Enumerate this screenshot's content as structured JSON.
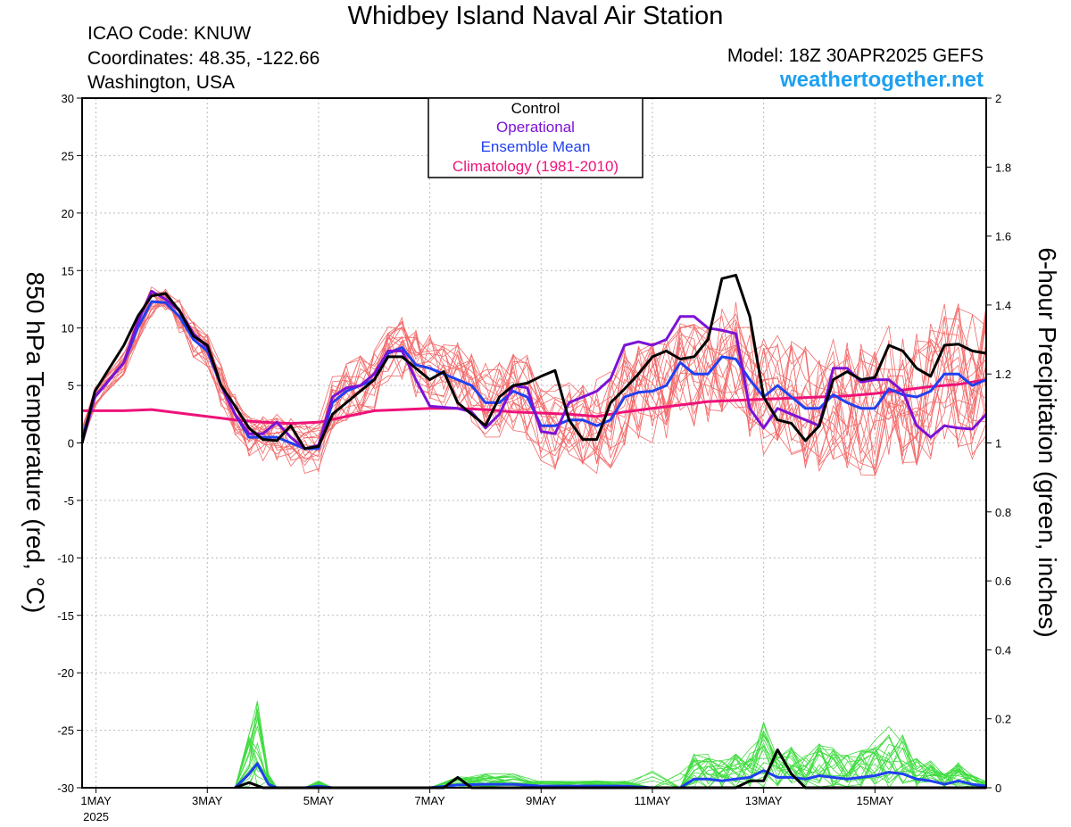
{
  "header": {
    "title": "Whidbey Island Naval Air Station",
    "icao": "ICAO Code: KNUW",
    "coordinates": "Coordinates: 48.35, -122.66",
    "region": "Washington, USA",
    "model": "Model: 18Z 30APR2025 GEFS",
    "site": "weathertogether.net"
  },
  "colors": {
    "control": "#000000",
    "operational": "#7b12d6",
    "ensemble_mean": "#2040f0",
    "climatology": "#ee1279",
    "ensemble_members_temp": "#f26a6a",
    "ensemble_members_precip": "#3fdc3f",
    "site": "#1ea0f0"
  },
  "chart_data": {
    "type": "line",
    "xlabel": "",
    "ylabel_left": "850 hPa Temperature (red, °C)",
    "ylabel_right": "6-hour Precipitation (green, inches)",
    "x_unit": "days since 1MAY 2025 00Z",
    "xlim": [
      -0.25,
      16.0
    ],
    "ylim_left": [
      -30,
      30
    ],
    "ylim_right": [
      0,
      2
    ],
    "left_ticks": [
      "30",
      "25",
      "20",
      "15",
      "10",
      "5",
      "0",
      "-5",
      "-10",
      "-15",
      "-20",
      "-25",
      "-30"
    ],
    "right_ticks": [
      "2",
      "1.8",
      "1.6",
      "1.4",
      "1.2",
      "1",
      "0.8",
      "0.6",
      "0.4",
      "0.2",
      "0"
    ],
    "x_ticks": [
      {
        "day": 0,
        "label": "1MAY",
        "sub": "2025"
      },
      {
        "day": 2,
        "label": "3MAY",
        "sub": ""
      },
      {
        "day": 4,
        "label": "5MAY",
        "sub": ""
      },
      {
        "day": 6,
        "label": "7MAY",
        "sub": ""
      },
      {
        "day": 8,
        "label": "9MAY",
        "sub": ""
      },
      {
        "day": 10,
        "label": "11MAY",
        "sub": ""
      },
      {
        "day": 12,
        "label": "13MAY",
        "sub": ""
      },
      {
        "day": 14,
        "label": "15MAY",
        "sub": ""
      }
    ],
    "grid": true,
    "legend_position": "top-center",
    "legend": [
      {
        "label": "Control",
        "series": "control"
      },
      {
        "label": "Operational",
        "series": "operational"
      },
      {
        "label": "Ensemble Mean",
        "series": "ensemble_mean"
      },
      {
        "label": "Climatology (1981-2010)",
        "series": "climatology"
      }
    ],
    "series": [
      {
        "name": "Control",
        "axis": "left",
        "color": "#000000",
        "width": 3,
        "points": [
          [
            -0.25,
            0
          ],
          [
            -0.02,
            4.5
          ],
          [
            0.5,
            8.5
          ],
          [
            0.75,
            11
          ],
          [
            1,
            12.8
          ],
          [
            1.25,
            13
          ],
          [
            1.5,
            11.5
          ],
          [
            1.75,
            9.3
          ],
          [
            2,
            8.5
          ],
          [
            2.25,
            5
          ],
          [
            2.5,
            3.2
          ],
          [
            2.75,
            1.3
          ],
          [
            3,
            0.3
          ],
          [
            3.25,
            0.2
          ],
          [
            3.5,
            1.5
          ],
          [
            3.75,
            -0.5
          ],
          [
            4,
            -0.3
          ],
          [
            4.25,
            2.5
          ],
          [
            4.5,
            3.5
          ],
          [
            4.75,
            4.5
          ],
          [
            5,
            5.5
          ],
          [
            5.25,
            7.5
          ],
          [
            5.5,
            7.5
          ],
          [
            5.75,
            6.5
          ],
          [
            6,
            5.5
          ],
          [
            6.25,
            6.2
          ],
          [
            6.5,
            3.5
          ],
          [
            6.75,
            2.5
          ],
          [
            7,
            1.5
          ],
          [
            7.25,
            4
          ],
          [
            7.5,
            5
          ],
          [
            7.75,
            5.2
          ],
          [
            8,
            5.8
          ],
          [
            8.25,
            6.3
          ],
          [
            8.5,
            2
          ],
          [
            8.75,
            0.3
          ],
          [
            9,
            0.3
          ],
          [
            9.25,
            3.5
          ],
          [
            9.5,
            4.7
          ],
          [
            9.75,
            6
          ],
          [
            10,
            7.5
          ],
          [
            10.25,
            8
          ],
          [
            10.5,
            7.3
          ],
          [
            10.75,
            7.5
          ],
          [
            11,
            9
          ],
          [
            11.25,
            14.3
          ],
          [
            11.5,
            14.6
          ],
          [
            11.75,
            11
          ],
          [
            12,
            4
          ],
          [
            12.25,
            2
          ],
          [
            12.5,
            1.7
          ],
          [
            12.75,
            0.2
          ],
          [
            13,
            1.5
          ],
          [
            13.25,
            5.5
          ],
          [
            13.5,
            6.2
          ],
          [
            13.75,
            5.5
          ],
          [
            14,
            5.7
          ],
          [
            14.25,
            8.5
          ],
          [
            14.5,
            8
          ],
          [
            14.75,
            6.5
          ],
          [
            15,
            5.8
          ],
          [
            15.25,
            8.5
          ],
          [
            15.5,
            8.6
          ],
          [
            15.75,
            8
          ],
          [
            16,
            7.8
          ]
        ]
      },
      {
        "name": "Operational",
        "axis": "left",
        "color": "#7b12d6",
        "width": 3,
        "points": [
          [
            -0.25,
            0
          ],
          [
            -0.02,
            4
          ],
          [
            0.5,
            7
          ],
          [
            0.75,
            10.5
          ],
          [
            1,
            13.2
          ],
          [
            1.25,
            12.5
          ],
          [
            1.5,
            11.5
          ],
          [
            1.75,
            9.5
          ],
          [
            2,
            8.3
          ],
          [
            2.25,
            5
          ],
          [
            2.5,
            2.5
          ],
          [
            2.75,
            0.8
          ],
          [
            3,
            0.8
          ],
          [
            3.25,
            1.8
          ],
          [
            3.5,
            0.5
          ],
          [
            3.75,
            -0.5
          ],
          [
            4,
            -0.2
          ],
          [
            4.25,
            4
          ],
          [
            4.5,
            4.8
          ],
          [
            4.75,
            5
          ],
          [
            5,
            6
          ],
          [
            5.25,
            8
          ],
          [
            5.5,
            8
          ],
          [
            5.75,
            5.5
          ],
          [
            6,
            3.2
          ],
          [
            6.25,
            3.1
          ],
          [
            6.5,
            3
          ],
          [
            6.75,
            2.7
          ],
          [
            7,
            1.3
          ],
          [
            7.25,
            2.5
          ],
          [
            7.5,
            5
          ],
          [
            7.75,
            4.8
          ],
          [
            8,
            1
          ],
          [
            8.25,
            0.8
          ],
          [
            8.5,
            3.5
          ],
          [
            8.75,
            4
          ],
          [
            9,
            4.5
          ],
          [
            9.25,
            5.6
          ],
          [
            9.5,
            8.5
          ],
          [
            9.75,
            8.8
          ],
          [
            10,
            8.5
          ],
          [
            10.25,
            9
          ],
          [
            10.5,
            11
          ],
          [
            10.75,
            11
          ],
          [
            11,
            10
          ],
          [
            11.25,
            9.8
          ],
          [
            11.5,
            9.5
          ],
          [
            11.75,
            3
          ],
          [
            12,
            1.3
          ],
          [
            12.25,
            3
          ],
          [
            12.5,
            2.5
          ],
          [
            12.75,
            2
          ],
          [
            13,
            1.5
          ],
          [
            13.25,
            6.5
          ],
          [
            13.5,
            6.5
          ],
          [
            13.75,
            5.3
          ],
          [
            14,
            5.5
          ],
          [
            14.25,
            5.5
          ],
          [
            14.5,
            4.5
          ],
          [
            14.75,
            1.5
          ],
          [
            15,
            0.5
          ],
          [
            15.25,
            1.5
          ],
          [
            15.5,
            1.3
          ],
          [
            15.75,
            1.2
          ],
          [
            16,
            2.5
          ]
        ]
      },
      {
        "name": "Ensemble Mean",
        "axis": "left",
        "color": "#2040f0",
        "width": 3,
        "points": [
          [
            -0.25,
            0.5
          ],
          [
            -0.02,
            4
          ],
          [
            0.5,
            7
          ],
          [
            0.75,
            10
          ],
          [
            1,
            12.3
          ],
          [
            1.25,
            12.2
          ],
          [
            1.5,
            11
          ],
          [
            1.75,
            9
          ],
          [
            2,
            8
          ],
          [
            2.25,
            5
          ],
          [
            2.5,
            2.5
          ],
          [
            2.75,
            0.5
          ],
          [
            3,
            0.5
          ],
          [
            3.25,
            0.5
          ],
          [
            3.5,
            0
          ],
          [
            3.75,
            -0.5
          ],
          [
            4,
            -0.5
          ],
          [
            4.25,
            3.5
          ],
          [
            4.5,
            4.5
          ],
          [
            4.75,
            5
          ],
          [
            5,
            5.5
          ],
          [
            5.25,
            7.8
          ],
          [
            5.5,
            8.3
          ],
          [
            5.75,
            6.8
          ],
          [
            6,
            6.5
          ],
          [
            6.25,
            6
          ],
          [
            6.5,
            5.5
          ],
          [
            6.75,
            5
          ],
          [
            7,
            3.5
          ],
          [
            7.25,
            3.5
          ],
          [
            7.5,
            4.5
          ],
          [
            7.75,
            4
          ],
          [
            8,
            1.5
          ],
          [
            8.25,
            1.5
          ],
          [
            8.5,
            2
          ],
          [
            8.75,
            2
          ],
          [
            9,
            1.5
          ],
          [
            9.25,
            2
          ],
          [
            9.5,
            4
          ],
          [
            9.75,
            4.4
          ],
          [
            10,
            4.5
          ],
          [
            10.25,
            5
          ],
          [
            10.5,
            7
          ],
          [
            10.75,
            6
          ],
          [
            11,
            6
          ],
          [
            11.25,
            7.5
          ],
          [
            11.5,
            7.3
          ],
          [
            11.75,
            5.5
          ],
          [
            12,
            4
          ],
          [
            12.25,
            5
          ],
          [
            12.5,
            4
          ],
          [
            12.75,
            3
          ],
          [
            13,
            3
          ],
          [
            13.25,
            4.2
          ],
          [
            13.5,
            3.5
          ],
          [
            13.75,
            3
          ],
          [
            14,
            3
          ],
          [
            14.25,
            4.7
          ],
          [
            14.5,
            4.2
          ],
          [
            14.75,
            4
          ],
          [
            15,
            4.5
          ],
          [
            15.25,
            6
          ],
          [
            15.5,
            6
          ],
          [
            15.75,
            5
          ],
          [
            16,
            5.5
          ]
        ]
      },
      {
        "name": "Climatology (1981-2010)",
        "axis": "left",
        "color": "#ee1279",
        "width": 3,
        "points": [
          [
            -0.25,
            2.8
          ],
          [
            0.5,
            2.8
          ],
          [
            1,
            2.9
          ],
          [
            1.5,
            2.6
          ],
          [
            2,
            2.3
          ],
          [
            2.5,
            2
          ],
          [
            3,
            1.8
          ],
          [
            3.5,
            1.7
          ],
          [
            4,
            1.8
          ],
          [
            4.5,
            2.3
          ],
          [
            5,
            2.8
          ],
          [
            5.5,
            2.9
          ],
          [
            6,
            3
          ],
          [
            6.5,
            3
          ],
          [
            7,
            2.9
          ],
          [
            7.5,
            2.7
          ],
          [
            8,
            2.6
          ],
          [
            8.5,
            2.5
          ],
          [
            9,
            2.3
          ],
          [
            9.5,
            2.7
          ],
          [
            10,
            3
          ],
          [
            10.5,
            3.3
          ],
          [
            11,
            3.6
          ],
          [
            11.5,
            3.7
          ],
          [
            12,
            3.8
          ],
          [
            12.5,
            3.9
          ],
          [
            13,
            4
          ],
          [
            13.5,
            4.1
          ],
          [
            14,
            4.3
          ],
          [
            14.5,
            4.6
          ],
          [
            15,
            4.9
          ],
          [
            15.5,
            5.1
          ],
          [
            16,
            5.5
          ]
        ]
      },
      {
        "name": "Control",
        "axis": "right",
        "color": "#000000",
        "width": 3,
        "points": [
          [
            2.5,
            0
          ],
          [
            2.75,
            0.015
          ],
          [
            3,
            0
          ],
          [
            6.25,
            0
          ],
          [
            6.5,
            0.03
          ],
          [
            6.75,
            0
          ],
          [
            11.5,
            0
          ],
          [
            11.75,
            0.02
          ],
          [
            12,
            0.02
          ],
          [
            12.25,
            0.11
          ],
          [
            12.5,
            0.04
          ],
          [
            12.75,
            0
          ],
          [
            16,
            0
          ]
        ]
      },
      {
        "name": "Ensemble Mean",
        "axis": "right",
        "color": "#2040f0",
        "width": 3,
        "points": [
          [
            2.5,
            0
          ],
          [
            2.75,
            0.04
          ],
          [
            2.9,
            0.07
          ],
          [
            3.1,
            0.01
          ],
          [
            3.25,
            0
          ],
          [
            3.75,
            0
          ],
          [
            4,
            0.005
          ],
          [
            4.25,
            0
          ],
          [
            6,
            0
          ],
          [
            6.5,
            0.008
          ],
          [
            7,
            0.01
          ],
          [
            7.5,
            0.01
          ],
          [
            8,
            0.005
          ],
          [
            9,
            0.005
          ],
          [
            9.5,
            0.005
          ],
          [
            10,
            0
          ],
          [
            10.5,
            0
          ],
          [
            10.75,
            0.025
          ],
          [
            11,
            0.025
          ],
          [
            11.25,
            0.02
          ],
          [
            11.5,
            0.025
          ],
          [
            11.75,
            0.03
          ],
          [
            12,
            0.05
          ],
          [
            12.25,
            0.03
          ],
          [
            12.5,
            0.03
          ],
          [
            12.75,
            0.025
          ],
          [
            13,
            0.035
          ],
          [
            13.25,
            0.03
          ],
          [
            13.5,
            0.025
          ],
          [
            13.75,
            0.03
          ],
          [
            14,
            0.035
          ],
          [
            14.25,
            0.045
          ],
          [
            14.5,
            0.04
          ],
          [
            14.75,
            0.025
          ],
          [
            15,
            0.02
          ],
          [
            15.25,
            0.01
          ],
          [
            15.5,
            0.02
          ],
          [
            15.75,
            0.01
          ],
          [
            16,
            0.005
          ]
        ]
      }
    ]
  }
}
